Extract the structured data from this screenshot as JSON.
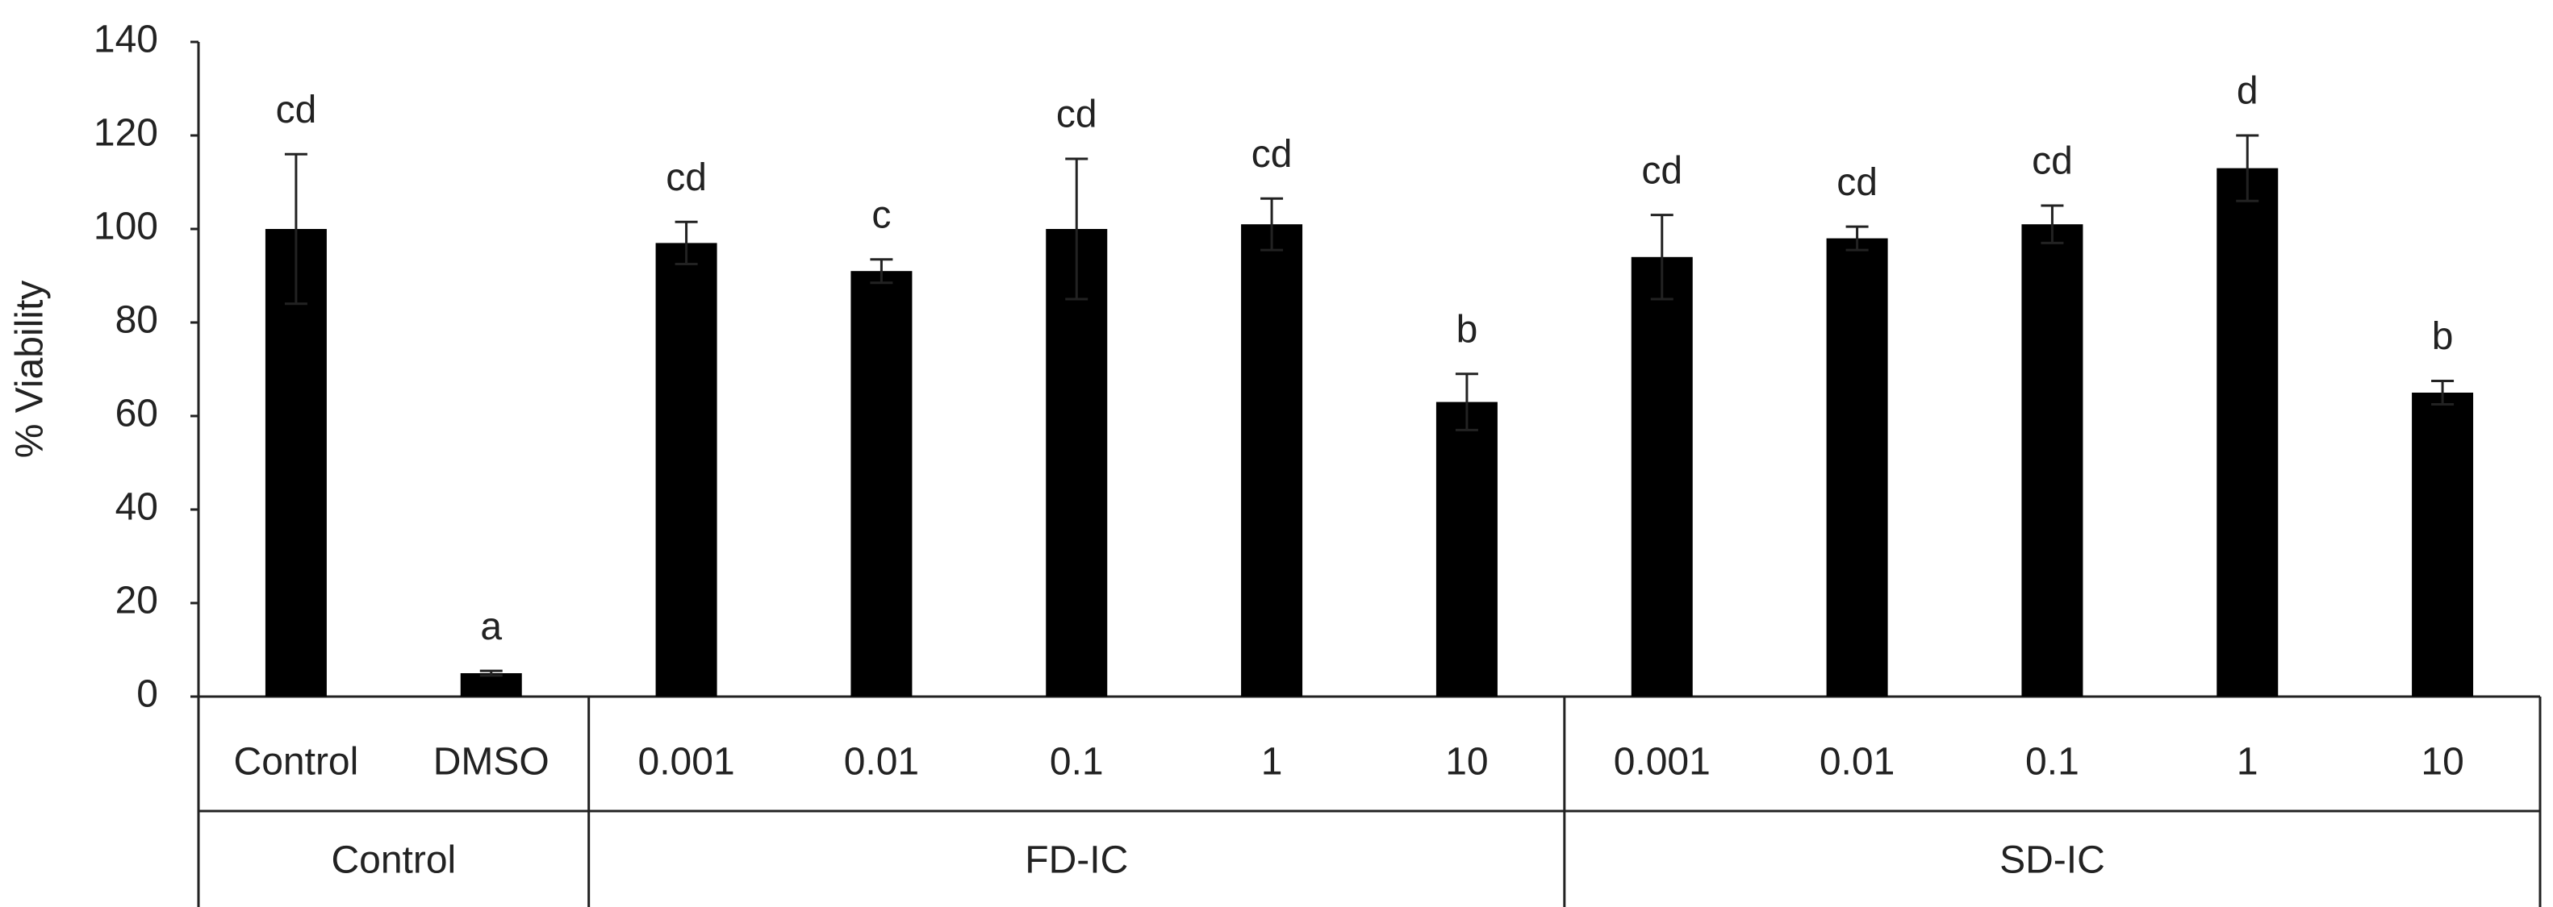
{
  "chart_data": {
    "type": "bar",
    "y_label": "% Viability",
    "color": "#000000",
    "ylim": [
      0,
      140
    ],
    "yticks": [
      0,
      20,
      40,
      60,
      80,
      100,
      120,
      140
    ],
    "grid": false,
    "groups": [
      {
        "label": "Control",
        "categories": [
          "Control",
          "DMSO"
        ],
        "values": [
          100,
          5
        ],
        "errors": [
          16,
          0.5
        ],
        "letters": [
          "cd",
          "a"
        ]
      },
      {
        "label": "FD-IC",
        "categories": [
          "0.001",
          "0.01",
          "0.1",
          "1",
          "10"
        ],
        "values": [
          97,
          91,
          100,
          101,
          63
        ],
        "errors": [
          4.5,
          2.5,
          15,
          5.5,
          6
        ],
        "letters": [
          "cd",
          "c",
          "cd",
          "cd",
          "b"
        ]
      },
      {
        "label": "SD-IC",
        "categories": [
          "0.001",
          "0.01",
          "0.1",
          "1",
          "10"
        ],
        "values": [
          94,
          98,
          101,
          113,
          65
        ],
        "errors": [
          9,
          2.5,
          4,
          7,
          2.5
        ],
        "letters": [
          "cd",
          "cd",
          "cd",
          "d",
          "b"
        ]
      }
    ]
  }
}
